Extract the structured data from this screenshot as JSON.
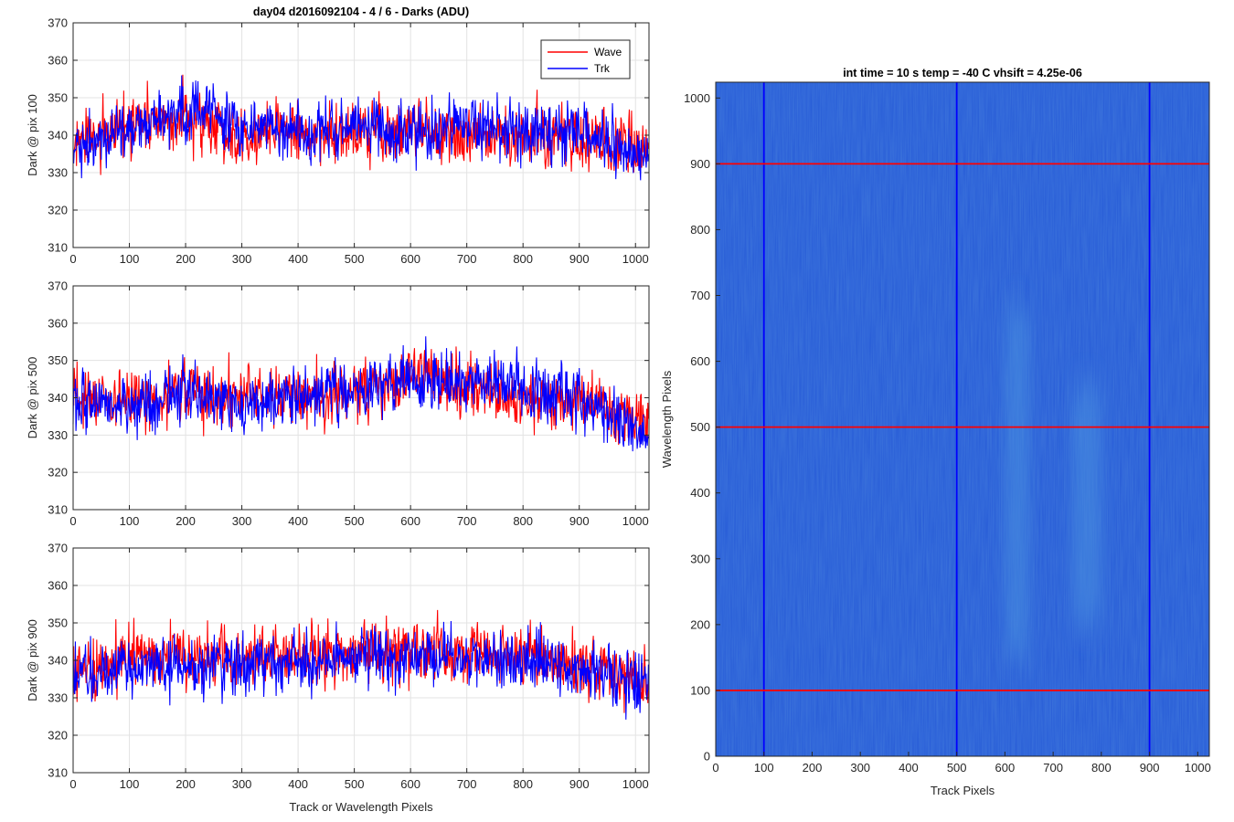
{
  "figure": {
    "title": "day04 d2016092104 - 4 / 6 - Darks (ADU)"
  },
  "colors": {
    "wave": "#ff0000",
    "trk": "#0000ff",
    "grid": "#e3e3e3",
    "axis": "#262626"
  },
  "chart_data": [
    {
      "type": "line",
      "title": "day04 d2016092104 - 4 / 6 - Darks (ADU)",
      "xlabel": "",
      "ylabel": "Dark @ pix 100",
      "xlim": [
        0,
        1024
      ],
      "ylim": [
        310,
        370
      ],
      "xticks": [
        0,
        100,
        200,
        300,
        400,
        500,
        600,
        700,
        800,
        900,
        1000
      ],
      "yticks": [
        310,
        320,
        330,
        340,
        350,
        360,
        370
      ],
      "grid": true,
      "legend": {
        "location": "top-right",
        "entries": [
          "Wave",
          "Trk"
        ]
      },
      "series": [
        {
          "name": "Wave",
          "color": "#ff0000",
          "points": 1024,
          "mean": 341,
          "spread": 8,
          "anchors": [
            [
              0,
              337
            ],
            [
              100,
              342
            ],
            [
              200,
              344
            ],
            [
              300,
              340
            ],
            [
              400,
              341
            ],
            [
              500,
              340
            ],
            [
              600,
              341
            ],
            [
              700,
              341
            ],
            [
              800,
              340
            ],
            [
              900,
              339
            ],
            [
              1000,
              336
            ],
            [
              1024,
              336
            ]
          ]
        },
        {
          "name": "Trk",
          "color": "#0000ff",
          "points": 1024,
          "mean": 341,
          "spread": 8,
          "anchors": [
            [
              0,
              336
            ],
            [
              100,
              341
            ],
            [
              200,
              348
            ],
            [
              300,
              342
            ],
            [
              400,
              341
            ],
            [
              500,
              342
            ],
            [
              600,
              341
            ],
            [
              700,
              342
            ],
            [
              800,
              341
            ],
            [
              900,
              341
            ],
            [
              1000,
              335
            ],
            [
              1024,
              334
            ]
          ]
        }
      ]
    },
    {
      "type": "line",
      "xlabel": "",
      "ylabel": "Dark @ pix 500",
      "xlim": [
        0,
        1024
      ],
      "ylim": [
        310,
        370
      ],
      "xticks": [
        0,
        100,
        200,
        300,
        400,
        500,
        600,
        700,
        800,
        900,
        1000
      ],
      "yticks": [
        310,
        320,
        330,
        340,
        350,
        360,
        370
      ],
      "grid": true,
      "series": [
        {
          "name": "Wave",
          "color": "#ff0000",
          "points": 1024,
          "mean": 341,
          "spread": 8,
          "anchors": [
            [
              0,
              341
            ],
            [
              100,
              339
            ],
            [
              200,
              341
            ],
            [
              300,
              341
            ],
            [
              400,
              341
            ],
            [
              500,
              341
            ],
            [
              600,
              346
            ],
            [
              700,
              343
            ],
            [
              800,
              339
            ],
            [
              900,
              339
            ],
            [
              1000,
              335
            ],
            [
              1024,
              333
            ]
          ]
        },
        {
          "name": "Trk",
          "color": "#0000ff",
          "points": 1024,
          "mean": 341,
          "spread": 8,
          "anchors": [
            [
              0,
              340
            ],
            [
              100,
              338
            ],
            [
              200,
              341
            ],
            [
              300,
              338
            ],
            [
              400,
              341
            ],
            [
              500,
              342
            ],
            [
              600,
              345
            ],
            [
              700,
              345
            ],
            [
              800,
              342
            ],
            [
              900,
              340
            ],
            [
              1000,
              332
            ],
            [
              1024,
              327
            ]
          ]
        }
      ]
    },
    {
      "type": "line",
      "xlabel": "Track or Wavelength Pixels",
      "ylabel": "Dark @ pix 900",
      "xlim": [
        0,
        1024
      ],
      "ylim": [
        310,
        370
      ],
      "xticks": [
        0,
        100,
        200,
        300,
        400,
        500,
        600,
        700,
        800,
        900,
        1000
      ],
      "yticks": [
        310,
        320,
        330,
        340,
        350,
        360,
        370
      ],
      "grid": true,
      "series": [
        {
          "name": "Wave",
          "color": "#ff0000",
          "points": 1024,
          "mean": 340,
          "spread": 8,
          "anchors": [
            [
              0,
              336
            ],
            [
              100,
              341
            ],
            [
              200,
              341
            ],
            [
              300,
              340
            ],
            [
              400,
              341
            ],
            [
              500,
              341
            ],
            [
              600,
              343
            ],
            [
              700,
              342
            ],
            [
              800,
              341
            ],
            [
              900,
              340
            ],
            [
              1000,
              335
            ],
            [
              1024,
              335
            ]
          ]
        },
        {
          "name": "Trk",
          "color": "#0000ff",
          "points": 1024,
          "mean": 340,
          "spread": 8,
          "anchors": [
            [
              0,
              336
            ],
            [
              100,
              338
            ],
            [
              200,
              338
            ],
            [
              300,
              339
            ],
            [
              400,
              340
            ],
            [
              500,
              341
            ],
            [
              600,
              341
            ],
            [
              700,
              341
            ],
            [
              800,
              340
            ],
            [
              900,
              338
            ],
            [
              1000,
              334
            ],
            [
              1024,
              336
            ]
          ]
        }
      ]
    },
    {
      "type": "heatmap",
      "title": "int time = 10 s   temp = -40 C   vhsift = 4.25e-06",
      "xlabel": "Track Pixels",
      "ylabel": "Wavelength Pixels",
      "xlim": [
        0,
        1024
      ],
      "ylim": [
        0,
        1024
      ],
      "xticks": [
        0,
        100,
        200,
        300,
        400,
        500,
        600,
        700,
        800,
        900,
        1000
      ],
      "yticks": [
        0,
        100,
        200,
        300,
        400,
        500,
        600,
        700,
        800,
        900,
        1000
      ],
      "grid": false,
      "background_color": "#2a5fd8",
      "features": [
        {
          "label": "faint band",
          "x_range": [
            600,
            650
          ],
          "y_range": [
            150,
            680
          ]
        },
        {
          "label": "faint band",
          "x_range": [
            740,
            800
          ],
          "y_range": [
            200,
            560
          ]
        }
      ],
      "cut_lines": {
        "vertical": {
          "x": [
            100,
            500,
            900
          ],
          "color": "#0000ff"
        },
        "horizontal": {
          "y": [
            100,
            500,
            900
          ],
          "color": "#ff0000"
        }
      }
    }
  ]
}
